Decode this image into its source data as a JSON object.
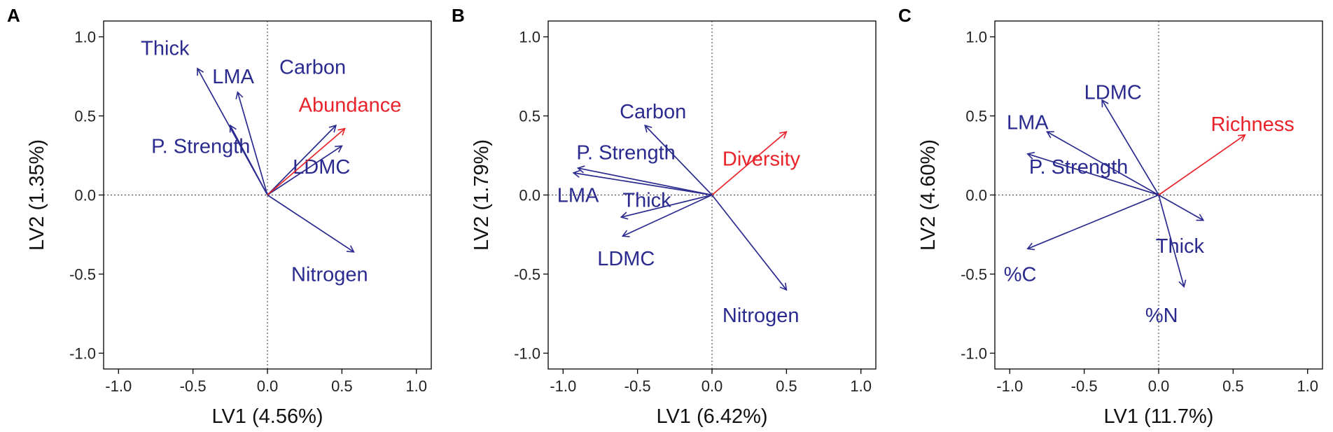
{
  "colors": {
    "trait": "#2a2a8f",
    "response": "#e8232a"
  },
  "chart_data": [
    {
      "type": "scatter",
      "panel": "A",
      "title": "",
      "xlabel": "LV1 (4.56%)",
      "ylabel": "LV2 (1.35%)",
      "xlim": [
        -1.1,
        1.1
      ],
      "ylim": [
        -1.1,
        1.1
      ],
      "xticks": [
        -1.0,
        -0.5,
        0.0,
        0.5,
        1.0
      ],
      "yticks": [
        -1.0,
        -0.5,
        0.0,
        0.5,
        1.0
      ],
      "xtick_labels": [
        "-1.0",
        "-0.5",
        "0.0",
        "0.5",
        "1.0"
      ],
      "ytick_labels": [
        "-1.0",
        "-0.5",
        "0.0",
        "0.5",
        "1.0"
      ],
      "grid": false,
      "vectors": [
        {
          "label": "Thick",
          "x": -0.47,
          "y": 0.8,
          "lx": -0.85,
          "ly": 0.93,
          "role": "trait"
        },
        {
          "label": "LMA",
          "x": -0.2,
          "y": 0.65,
          "lx": -0.37,
          "ly": 0.75,
          "role": "trait"
        },
        {
          "label": "P. Strength",
          "x": -0.25,
          "y": 0.44,
          "lx": -0.78,
          "ly": 0.31,
          "role": "trait"
        },
        {
          "label": "Carbon",
          "x": 0.46,
          "y": 0.44,
          "lx": 0.08,
          "ly": 0.81,
          "role": "trait"
        },
        {
          "label": "LDMC",
          "x": 0.5,
          "y": 0.31,
          "lx": 0.17,
          "ly": 0.18,
          "role": "trait"
        },
        {
          "label": "Nitrogen",
          "x": 0.58,
          "y": -0.36,
          "lx": 0.16,
          "ly": -0.5,
          "role": "trait"
        },
        {
          "label": "Abundance",
          "x": 0.52,
          "y": 0.42,
          "lx": 0.21,
          "ly": 0.57,
          "role": "response"
        }
      ]
    },
    {
      "type": "scatter",
      "panel": "B",
      "title": "",
      "xlabel": "LV1 (6.42%)",
      "ylabel": "LV2 (1.79%)",
      "xlim": [
        -1.1,
        1.1
      ],
      "ylim": [
        -1.1,
        1.1
      ],
      "xticks": [
        -1.0,
        -0.5,
        0.0,
        0.5,
        1.0
      ],
      "yticks": [
        -1.0,
        -0.5,
        0.0,
        0.5,
        1.0
      ],
      "xtick_labels": [
        "-1.0",
        "-0.5",
        "0.0",
        "0.5",
        "1.0"
      ],
      "ytick_labels": [
        "-1.0",
        "-0.5",
        "0.0",
        "0.5",
        "1.0"
      ],
      "grid": false,
      "vectors": [
        {
          "label": "Carbon",
          "x": -0.45,
          "y": 0.44,
          "lx": -0.62,
          "ly": 0.53,
          "role": "trait"
        },
        {
          "label": "P. Strength",
          "x": -0.9,
          "y": 0.17,
          "lx": -0.91,
          "ly": 0.27,
          "role": "trait"
        },
        {
          "label": "LMA",
          "x": -0.93,
          "y": 0.14,
          "lx": -1.04,
          "ly": 0.0,
          "role": "trait"
        },
        {
          "label": "Thick",
          "x": -0.61,
          "y": -0.14,
          "lx": -0.6,
          "ly": -0.03,
          "role": "trait"
        },
        {
          "label": "LDMC",
          "x": -0.6,
          "y": -0.26,
          "lx": -0.77,
          "ly": -0.4,
          "role": "trait"
        },
        {
          "label": "Nitrogen",
          "x": 0.5,
          "y": -0.6,
          "lx": 0.07,
          "ly": -0.76,
          "role": "trait"
        },
        {
          "label": "Diversity",
          "x": 0.5,
          "y": 0.4,
          "lx": 0.07,
          "ly": 0.23,
          "role": "response"
        }
      ]
    },
    {
      "type": "scatter",
      "panel": "C",
      "title": "",
      "xlabel": "LV1 (11.7%)",
      "ylabel": "LV2 (4.60%)",
      "xlim": [
        -1.1,
        1.1
      ],
      "ylim": [
        -1.1,
        1.1
      ],
      "xticks": [
        -1.0,
        -0.5,
        0.0,
        0.5,
        1.0
      ],
      "yticks": [
        -1.0,
        -0.5,
        0.0,
        0.5,
        1.0
      ],
      "xtick_labels": [
        "-1.0",
        "-0.5",
        "0.0",
        "0.5",
        "1.0"
      ],
      "ytick_labels": [
        "-1.0",
        "-0.5",
        "0.0",
        "0.5",
        "1.0"
      ],
      "grid": false,
      "vectors": [
        {
          "label": "LDMC",
          "x": -0.38,
          "y": 0.6,
          "lx": -0.5,
          "ly": 0.65,
          "role": "trait"
        },
        {
          "label": "LMA",
          "x": -0.75,
          "y": 0.4,
          "lx": -1.02,
          "ly": 0.46,
          "role": "trait"
        },
        {
          "label": "P. Strength",
          "x": -0.88,
          "y": 0.26,
          "lx": -0.87,
          "ly": 0.18,
          "role": "trait"
        },
        {
          "label": "%C",
          "x": -0.88,
          "y": -0.34,
          "lx": -1.04,
          "ly": -0.5,
          "role": "trait"
        },
        {
          "label": "Thick",
          "x": 0.3,
          "y": -0.16,
          "lx": -0.02,
          "ly": -0.32,
          "role": "trait"
        },
        {
          "label": "%N",
          "x": 0.17,
          "y": -0.58,
          "lx": -0.09,
          "ly": -0.76,
          "role": "trait"
        },
        {
          "label": "Richness",
          "x": 0.58,
          "y": 0.38,
          "lx": 0.35,
          "ly": 0.45,
          "role": "response"
        }
      ]
    }
  ]
}
